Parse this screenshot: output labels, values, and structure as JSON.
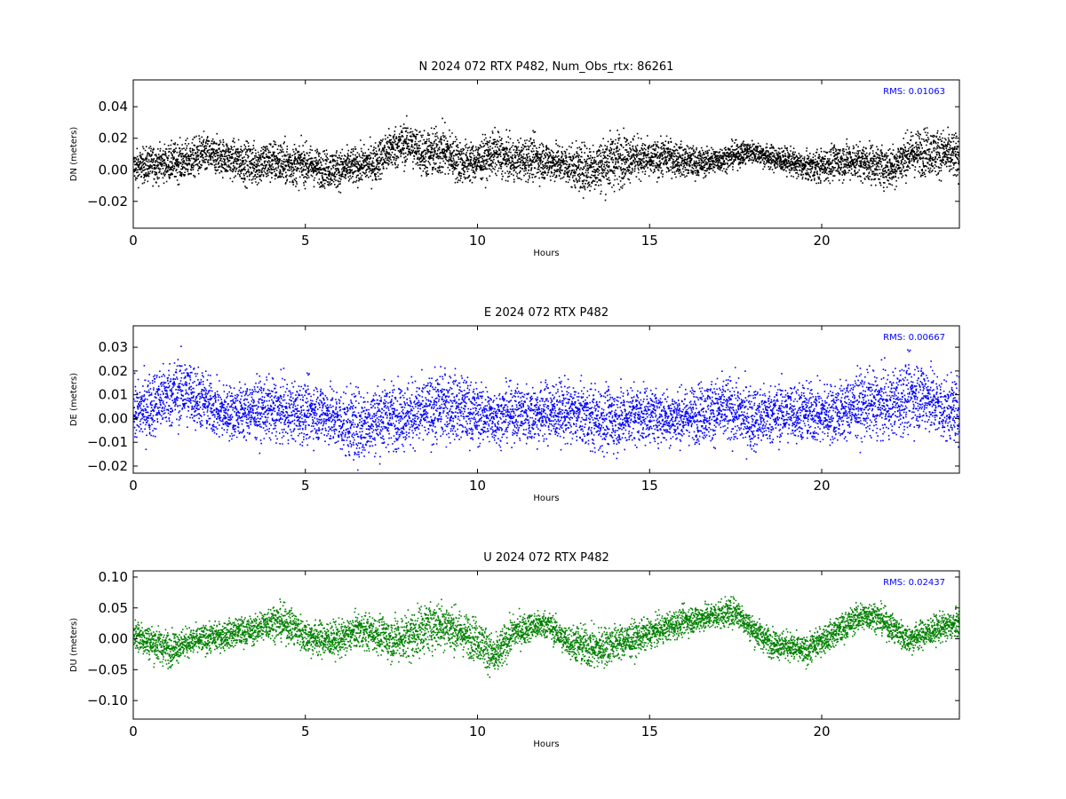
{
  "chart_data": [
    {
      "type": "scatter",
      "title": "N 2024 072 RTX  P482, Num_Obs_rtx: 86261",
      "xlabel": "Hours",
      "ylabel": "DN (meters)",
      "xlim": [
        0,
        24
      ],
      "ylim": [
        -0.037,
        0.057
      ],
      "xticks": [
        0,
        5,
        10,
        15,
        20
      ],
      "yticks": [
        -0.02,
        0.0,
        0.02,
        0.04
      ],
      "ytick_labels": [
        "−0.02",
        "0.00",
        "0.02",
        "0.04"
      ],
      "annotation": "RMS:  0.01063",
      "color": "#000000",
      "grid": false,
      "series": [
        {
          "x": [
            0,
            0.5,
            1,
            1.5,
            2,
            2.5,
            3,
            3.5,
            4,
            4.5,
            5,
            5.5,
            6,
            6.5,
            7,
            7.5,
            8,
            8.5,
            9,
            9.5,
            10,
            10.5,
            11,
            11.5,
            12,
            12.5,
            13,
            13.5,
            14,
            14.5,
            15,
            15.5,
            16,
            16.5,
            17,
            17.5,
            18,
            18.5,
            19,
            19.5,
            20,
            20.5,
            21,
            21.5,
            22,
            22.5,
            23,
            23.5,
            24
          ],
          "y": [
            0.002,
            0.004,
            0.005,
            0.006,
            0.01,
            0.009,
            0.006,
            0.004,
            0.006,
            0.004,
            0.004,
            0.001,
            0.001,
            0.003,
            0.005,
            0.014,
            0.017,
            0.01,
            0.013,
            0.005,
            0.006,
            0.011,
            0.006,
            0.008,
            0.006,
            0.004,
            0.001,
            0.003,
            0.007,
            0.009,
            0.006,
            0.009,
            0.006,
            0.005,
            0.007,
            0.01,
            0.012,
            0.008,
            0.006,
            0.002,
            0.003,
            0.006,
            0.006,
            0.004,
            0.002,
            0.01,
            0.012,
            0.011,
            0.008
          ],
          "spread": [
            0.009,
            0.01,
            0.01,
            0.011,
            0.011,
            0.01,
            0.011,
            0.012,
            0.012,
            0.012,
            0.011,
            0.01,
            0.011,
            0.01,
            0.011,
            0.012,
            0.012,
            0.013,
            0.014,
            0.012,
            0.011,
            0.012,
            0.011,
            0.012,
            0.011,
            0.011,
            0.013,
            0.015,
            0.016,
            0.012,
            0.01,
            0.01,
            0.009,
            0.008,
            0.007,
            0.007,
            0.006,
            0.007,
            0.007,
            0.008,
            0.009,
            0.01,
            0.01,
            0.011,
            0.012,
            0.012,
            0.013,
            0.013,
            0.012
          ]
        }
      ]
    },
    {
      "type": "scatter",
      "title": "E 2024 072 RTX  P482",
      "xlabel": "Hours",
      "ylabel": "DE (meters)",
      "xlim": [
        0,
        24
      ],
      "ylim": [
        -0.023,
        0.039
      ],
      "xticks": [
        0,
        5,
        10,
        15,
        20
      ],
      "yticks": [
        -0.02,
        -0.01,
        0.0,
        0.01,
        0.02,
        0.03
      ],
      "ytick_labels": [
        "−0.02",
        "−0.01",
        "0.00",
        "0.01",
        "0.02",
        "0.03"
      ],
      "annotation": "RMS:  0.00667",
      "color": "#0000ff",
      "grid": false,
      "series": [
        {
          "x": [
            0,
            0.5,
            1,
            1.5,
            2,
            2.5,
            3,
            3.5,
            4,
            4.5,
            5,
            5.5,
            6,
            6.5,
            7,
            7.5,
            8,
            8.5,
            9,
            9.5,
            10,
            10.5,
            11,
            11.5,
            12,
            12.5,
            13,
            13.5,
            14,
            14.5,
            15,
            15.5,
            16,
            16.5,
            17,
            17.5,
            18,
            18.5,
            19,
            19.5,
            20,
            20.5,
            21,
            21.5,
            22,
            22.5,
            23,
            23.5,
            24
          ],
          "y": [
            0.002,
            0.006,
            0.01,
            0.012,
            0.008,
            0.003,
            0.003,
            0.004,
            0.004,
            0.003,
            0.003,
            0.003,
            -0.001,
            -0.003,
            0.0,
            0.002,
            0.002,
            0.003,
            0.006,
            0.005,
            0.002,
            0.001,
            0.003,
            0.002,
            0.003,
            0.003,
            0.002,
            0.0,
            0.0,
            0.002,
            0.002,
            0.001,
            0.001,
            0.003,
            0.004,
            0.003,
            0.0,
            0.002,
            0.003,
            0.003,
            0.002,
            0.003,
            0.006,
            0.006,
            0.006,
            0.01,
            0.01,
            0.004,
            0.004
          ],
          "spread": [
            0.011,
            0.012,
            0.012,
            0.013,
            0.011,
            0.01,
            0.01,
            0.011,
            0.011,
            0.011,
            0.011,
            0.011,
            0.012,
            0.013,
            0.013,
            0.012,
            0.012,
            0.012,
            0.013,
            0.012,
            0.011,
            0.01,
            0.01,
            0.011,
            0.011,
            0.011,
            0.011,
            0.012,
            0.012,
            0.011,
            0.01,
            0.01,
            0.01,
            0.011,
            0.012,
            0.012,
            0.012,
            0.011,
            0.011,
            0.011,
            0.011,
            0.011,
            0.012,
            0.012,
            0.012,
            0.013,
            0.013,
            0.012,
            0.011
          ]
        }
      ]
    },
    {
      "type": "scatter",
      "title": "U 2024 072 RTX  P482",
      "xlabel": "Hours",
      "ylabel": "DU (meters)",
      "xlim": [
        0,
        24
      ],
      "ylim": [
        -0.13,
        0.11
      ],
      "xticks": [
        0,
        5,
        10,
        15,
        20
      ],
      "yticks": [
        -0.1,
        -0.05,
        0.0,
        0.05,
        0.1
      ],
      "ytick_labels": [
        "−0.10",
        "−0.05",
        "0.00",
        "0.05",
        "0.10"
      ],
      "annotation": "RMS:  0.02437",
      "color": "#008000",
      "grid": false,
      "series": [
        {
          "x": [
            0,
            0.5,
            1,
            1.5,
            2,
            2.5,
            3,
            3.5,
            4,
            4.5,
            5,
            5.5,
            6,
            6.5,
            7,
            7.5,
            8,
            8.5,
            9,
            9.5,
            10,
            10.5,
            11,
            11.5,
            12,
            12.5,
            13,
            13.5,
            14,
            14.5,
            15,
            15.5,
            16,
            16.5,
            17,
            17.5,
            18,
            18.5,
            19,
            19.5,
            20,
            20.5,
            21,
            21.5,
            22,
            22.5,
            23,
            23.5,
            24
          ],
          "y": [
            0.01,
            -0.005,
            -0.015,
            -0.005,
            0.0,
            0.005,
            0.012,
            0.015,
            0.03,
            0.025,
            0.005,
            0.0,
            0.0,
            0.015,
            0.01,
            0.0,
            0.005,
            0.02,
            0.025,
            0.01,
            0.0,
            -0.03,
            0.01,
            0.02,
            0.025,
            0.0,
            -0.01,
            -0.015,
            -0.005,
            0.0,
            0.01,
            0.02,
            0.03,
            0.035,
            0.04,
            0.045,
            0.015,
            -0.005,
            -0.01,
            -0.02,
            0.0,
            0.015,
            0.035,
            0.04,
            0.02,
            0.0,
            0.01,
            0.02,
            0.025
          ],
          "spread": [
            0.025,
            0.025,
            0.025,
            0.02,
            0.02,
            0.02,
            0.02,
            0.02,
            0.025,
            0.025,
            0.025,
            0.025,
            0.025,
            0.025,
            0.025,
            0.03,
            0.035,
            0.035,
            0.035,
            0.03,
            0.03,
            0.03,
            0.025,
            0.02,
            0.02,
            0.02,
            0.03,
            0.03,
            0.025,
            0.025,
            0.02,
            0.02,
            0.02,
            0.02,
            0.02,
            0.02,
            0.02,
            0.02,
            0.02,
            0.02,
            0.02,
            0.02,
            0.02,
            0.02,
            0.02,
            0.02,
            0.02,
            0.02,
            0.02
          ]
        }
      ]
    }
  ]
}
